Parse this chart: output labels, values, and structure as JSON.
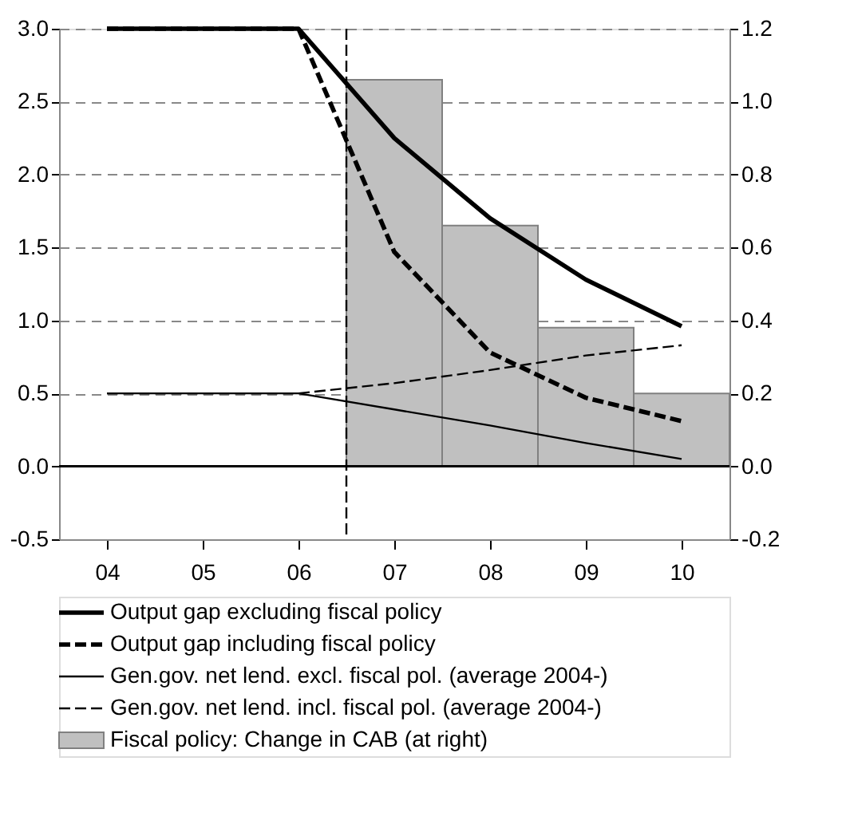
{
  "chart_data": {
    "type": "line",
    "x": [
      4,
      5,
      6,
      7,
      8,
      9,
      10
    ],
    "xlim": [
      3.5,
      10.5
    ],
    "xticks": [
      {
        "value": 4,
        "label": "04"
      },
      {
        "value": 5,
        "label": "05"
      },
      {
        "value": 6,
        "label": "06"
      },
      {
        "value": 7,
        "label": "07"
      },
      {
        "value": 8,
        "label": "08"
      },
      {
        "value": 9,
        "label": "09"
      },
      {
        "value": 10,
        "label": "10"
      }
    ],
    "ylim": [
      -0.5,
      3.0
    ],
    "yticks": [
      -0.5,
      {
        "value": 0,
        "label": "0.0"
      },
      0.5,
      {
        "value": 1,
        "label": "1.0"
      },
      1.5,
      {
        "value": 2,
        "label": "2.0"
      },
      2.5,
      {
        "value": 3,
        "label": "3.0"
      }
    ],
    "y2lim": [
      -0.2,
      1.2
    ],
    "y2ticks": [
      -0.2,
      {
        "value": 0,
        "label": "0.0"
      },
      0.2,
      0.4,
      0.6,
      0.8,
      {
        "value": 1,
        "label": "1.0"
      },
      1.2
    ],
    "series": [
      {
        "name": "Fiscal policy: Change in CAB (at right)",
        "type": "bar",
        "axis": "y2",
        "color": "#c0c0c0",
        "x": [
          7,
          8,
          9,
          10
        ],
        "values": [
          1.06,
          0.66,
          0.38,
          0.2
        ]
      },
      {
        "name": "Output gap  excluding fiscal policy",
        "color": "#000000",
        "line_style": "solid",
        "values": [
          3.0,
          3.0,
          3.0,
          2.25,
          1.7,
          1.28,
          0.96
        ]
      },
      {
        "name": "Output gap  including fiscal policy",
        "color": "#000000",
        "line_style": "dashed",
        "values": [
          3.0,
          3.0,
          3.0,
          1.47,
          0.78,
          0.47,
          0.31
        ]
      },
      {
        "name": "Gen.gov. net lend. excl. fiscal pol.  (average 2004-)",
        "color": "#000000",
        "line_style": "solid",
        "values": [
          0.5,
          0.5,
          0.5,
          0.39,
          0.28,
          0.16,
          0.05
        ]
      },
      {
        "name": "Gen.gov. net lend. incl. fiscal pol. (average 2004-)",
        "color": "#000000",
        "line_style": "dashed",
        "values": [
          0.5,
          0.5,
          0.5,
          0.57,
          0.66,
          0.76,
          0.83
        ]
      }
    ],
    "ref_lines": [
      {
        "axis": "x",
        "value": 6.5,
        "color": "#000000",
        "line_style": "dashed"
      },
      {
        "axis": "y",
        "value": 0.0,
        "color": "#000000",
        "line_style": "solid"
      }
    ],
    "grid": "y",
    "legend": "bottom",
    "marker": "none"
  }
}
